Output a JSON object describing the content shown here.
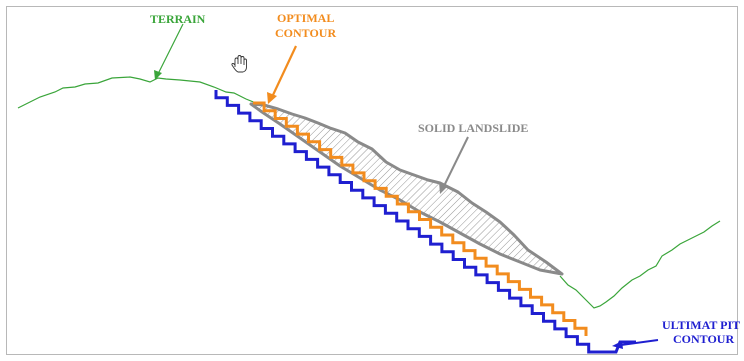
{
  "labels": {
    "terrain": "TERRAIN",
    "optimal_contour": [
      "OPTIMAL",
      "CONTOUR"
    ],
    "solid_landslide": "SOLID LANDSLIDE",
    "ultimate_pit_contour": [
      "ULTIMAT PIT",
      "CONTOUR"
    ]
  },
  "colors": {
    "terrain": "#3aa53a",
    "optimal_contour": "#f28c1e",
    "solid_landslide": "#8a8a8a",
    "ultimate_pit_contour": "#1f1fd0",
    "hatch": "#8a8a8a",
    "frame": "#b8b8b8"
  },
  "icons": {
    "cursor": "hand-pointer-icon"
  }
}
